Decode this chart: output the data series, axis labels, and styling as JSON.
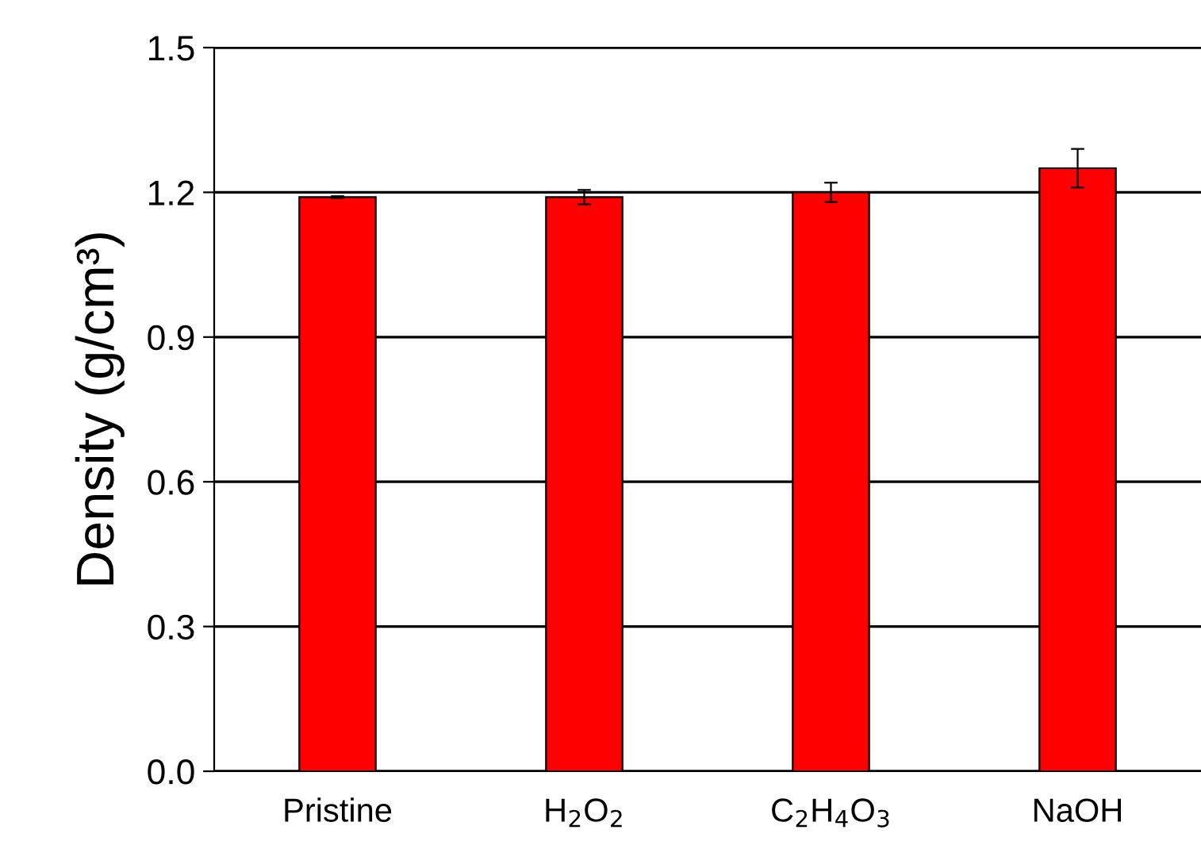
{
  "chart_data": {
    "type": "bar",
    "ylabel": "Density (g/cm³)",
    "categories": [
      "Pristine",
      "H$_{2}$O$_{2}$",
      "C$_{2}$H$_{4}$O$_{3}$",
      "NaOH"
    ],
    "values": [
      1.19,
      1.19,
      1.2,
      1.25
    ],
    "errors": [
      0.002,
      0.015,
      0.02,
      0.04
    ],
    "color": "#ff0000",
    "ylim": [
      0,
      1.5
    ],
    "yticks": [
      {
        "value": 0,
        "label": "0.0"
      },
      0.3,
      0.6,
      0.9,
      1.2,
      1.5
    ],
    "grid": "y",
    "legend": false
  }
}
